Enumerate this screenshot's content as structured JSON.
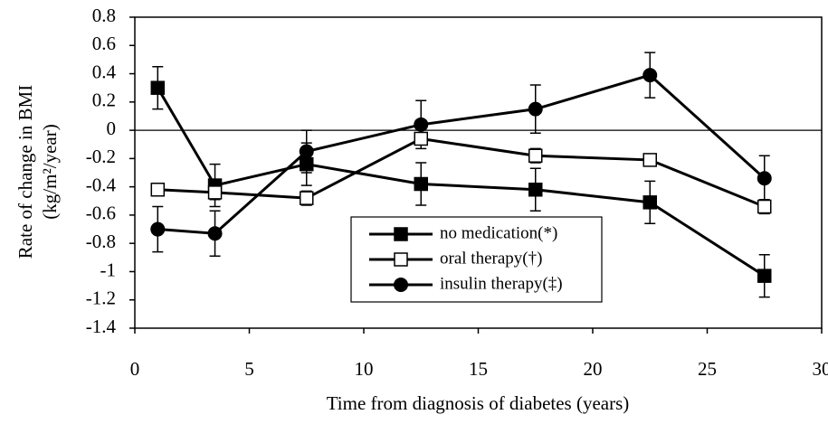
{
  "chart_data": {
    "type": "line",
    "xlabel": "Time from diagnosis of diabetes (years)",
    "ylabel": "Rate of change in BMI",
    "ylabel_unit": "(kg/m²/year)",
    "x": [
      1,
      3.5,
      7.5,
      12.5,
      17.5,
      22.5,
      27.5
    ],
    "series": [
      {
        "name": "no medication(*)",
        "color": "#000000",
        "marker": "filled-square",
        "values": [
          0.3,
          -0.39,
          -0.24,
          -0.38,
          -0.42,
          -0.51,
          -1.03
        ],
        "errors": [
          0.15,
          0.15,
          0.15,
          0.15,
          0.15,
          0.15,
          0.15
        ]
      },
      {
        "name": "oral therapy(†)",
        "color": "#000000",
        "marker": "open-square",
        "values": [
          -0.42,
          -0.44,
          -0.48,
          -0.06,
          -0.18,
          -0.21,
          -0.54
        ],
        "errors": [
          0.04,
          0.05,
          0.05,
          0.04,
          0.05,
          0.04,
          0.05
        ]
      },
      {
        "name": "insulin therapy(‡)",
        "color": "#000000",
        "marker": "filled-circle",
        "values": [
          -0.7,
          -0.73,
          -0.15,
          0.04,
          0.15,
          0.39,
          -0.34
        ],
        "errors": [
          0.16,
          0.16,
          0.15,
          0.17,
          0.17,
          0.16,
          0.16
        ]
      }
    ],
    "xlim": [
      0,
      30
    ],
    "xticks": [
      0,
      5,
      10,
      15,
      20,
      25,
      30
    ],
    "ylim": [
      -1.4,
      0.8
    ],
    "yticks": [
      0.8,
      0.6,
      0.4,
      0.2,
      0,
      -0.2,
      -0.4,
      -0.6,
      -0.8,
      -1,
      -1.2,
      -1.4
    ],
    "grid": false,
    "zero_line": true,
    "legend": "center"
  }
}
